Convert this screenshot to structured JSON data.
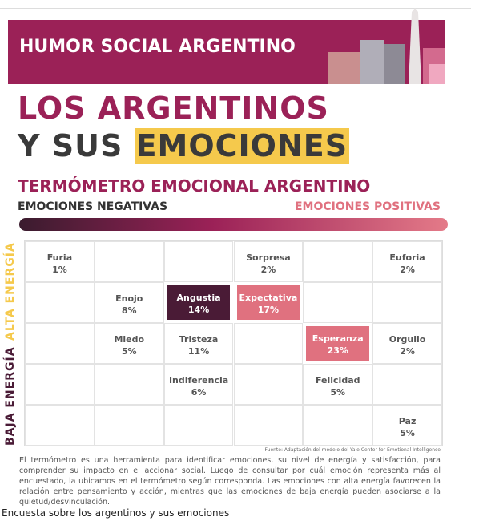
{
  "header": {
    "title": "HUMOR SOCIAL ARGENTINO"
  },
  "headline": {
    "line1": "LOS ARGENTINOS",
    "line2_start": "Y SUS",
    "line2_highlight": "EMOCIONES"
  },
  "subtitle": "TERMÓMETRO EMOCIONAL ARGENTINO",
  "scale": {
    "negative": "EMOCIONES NEGATIVAS",
    "positive": "EMOCIONES POSITIVAS"
  },
  "axis": {
    "low": "BAJA ENERGÍA",
    "high": "ALTA ENERGÍA"
  },
  "grid": {
    "columns": 6,
    "rows": 5,
    "cells": [
      {
        "row": 0,
        "col": 0,
        "label": "Furia",
        "value": "1%"
      },
      {
        "row": 0,
        "col": 3,
        "label": "Sorpresa",
        "value": "2%"
      },
      {
        "row": 0,
        "col": 5,
        "label": "Euforia",
        "value": "2%"
      },
      {
        "row": 1,
        "col": 1,
        "label": "Enojo",
        "value": "8%"
      },
      {
        "row": 1,
        "col": 2,
        "label": "Angustia",
        "value": "14%",
        "fill": "#4a1b36"
      },
      {
        "row": 1,
        "col": 3,
        "label": "Expectativa",
        "value": "17%",
        "fill": "#e0717f"
      },
      {
        "row": 2,
        "col": 1,
        "label": "Miedo",
        "value": "5%"
      },
      {
        "row": 2,
        "col": 2,
        "label": "Tristeza",
        "value": "11%"
      },
      {
        "row": 2,
        "col": 4,
        "label": "Esperanza",
        "value": "23%",
        "fill": "#e0717f"
      },
      {
        "row": 2,
        "col": 5,
        "label": "Orgullo",
        "value": "2%"
      },
      {
        "row": 3,
        "col": 2,
        "label": "Indiferencia",
        "value": "6%"
      },
      {
        "row": 3,
        "col": 4,
        "label": "Felicidad",
        "value": "5%"
      },
      {
        "row": 4,
        "col": 5,
        "label": "Paz",
        "value": "5%"
      }
    ]
  },
  "source": "Fuente: Adaptación del modelo del Yale Center for Emotional Intelligence",
  "description": "El termómetro es una herramienta para identificar emociones, su nivel de energía y satisfacción, para comprender su impacto en el accionar social. Luego de consultar por cuál emoción representa más al encuestado, la ubicamos en el termómetro según corresponda. Las emociones con alta energía favorecen la relación entre pensamiento y acción, mientras que las emociones de baja energía pueden asociarse a la quietud/desvinculación.",
  "caption": "Encuesta sobre los argentinos y sus emociones"
}
